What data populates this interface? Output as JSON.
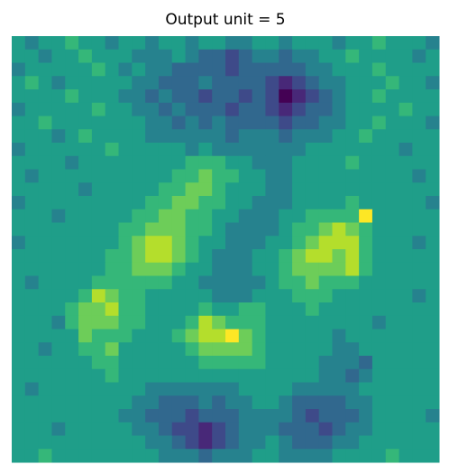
{
  "chart_data": {
    "type": "heatmap",
    "title": "Output unit = 5",
    "colormap": "viridis",
    "vlim": [
      0,
      9
    ],
    "values": [
      [
        5,
        4,
        5,
        5,
        6,
        5,
        5,
        4,
        5,
        5,
        4,
        5,
        5,
        4,
        5,
        5,
        4,
        4,
        5,
        5,
        4,
        5,
        5,
        5,
        4,
        5,
        5,
        6,
        5,
        5,
        5,
        4
      ],
      [
        5,
        5,
        4,
        5,
        5,
        6,
        5,
        5,
        5,
        4,
        4,
        4,
        5,
        4,
        3,
        3,
        2,
        3,
        4,
        4,
        3,
        4,
        4,
        5,
        5,
        6,
        5,
        5,
        5,
        5,
        4,
        5
      ],
      [
        4,
        5,
        5,
        5,
        5,
        5,
        6,
        5,
        4,
        5,
        4,
        4,
        3,
        3,
        3,
        3,
        2,
        3,
        3,
        3,
        3,
        3,
        4,
        4,
        5,
        5,
        5,
        6,
        5,
        5,
        5,
        5
      ],
      [
        5,
        6,
        5,
        4,
        5,
        5,
        5,
        5,
        5,
        4,
        4,
        3,
        3,
        3,
        4,
        3,
        3,
        3,
        3,
        2,
        1,
        2,
        3,
        4,
        4,
        5,
        5,
        5,
        6,
        5,
        5,
        4
      ],
      [
        5,
        5,
        5,
        5,
        6,
        5,
        5,
        5,
        4,
        4,
        3,
        4,
        3,
        3,
        2,
        3,
        3,
        2,
        3,
        2,
        0,
        1,
        2,
        3,
        4,
        5,
        5,
        6,
        5,
        5,
        5,
        5
      ],
      [
        4,
        5,
        5,
        5,
        5,
        5,
        6,
        5,
        5,
        4,
        4,
        3,
        4,
        3,
        3,
        3,
        2,
        3,
        3,
        2,
        1,
        2,
        3,
        3,
        4,
        5,
        5,
        5,
        5,
        6,
        5,
        5
      ],
      [
        5,
        5,
        6,
        5,
        5,
        5,
        5,
        5,
        5,
        5,
        4,
        4,
        3,
        4,
        3,
        4,
        3,
        3,
        3,
        3,
        2,
        3,
        3,
        4,
        4,
        5,
        5,
        6,
        5,
        5,
        5,
        4
      ],
      [
        5,
        5,
        5,
        4,
        5,
        6,
        5,
        5,
        5,
        5,
        4,
        4,
        4,
        4,
        4,
        4,
        3,
        4,
        4,
        4,
        3,
        4,
        4,
        4,
        5,
        5,
        6,
        5,
        5,
        5,
        5,
        5
      ],
      [
        4,
        5,
        5,
        5,
        5,
        5,
        5,
        6,
        5,
        5,
        5,
        5,
        5,
        4,
        5,
        4,
        4,
        4,
        4,
        4,
        4,
        4,
        5,
        5,
        5,
        5,
        5,
        5,
        5,
        4,
        5,
        5
      ],
      [
        5,
        5,
        5,
        5,
        4,
        5,
        5,
        5,
        5,
        5,
        5,
        5,
        5,
        6,
        6,
        6,
        5,
        5,
        4,
        4,
        4,
        5,
        5,
        5,
        5,
        6,
        5,
        5,
        5,
        5,
        5,
        5
      ],
      [
        5,
        4,
        5,
        5,
        5,
        5,
        5,
        5,
        5,
        5,
        5,
        5,
        6,
        6,
        7,
        6,
        6,
        5,
        5,
        4,
        4,
        5,
        5,
        5,
        5,
        5,
        5,
        5,
        5,
        5,
        4,
        5
      ],
      [
        5,
        5,
        5,
        5,
        5,
        4,
        5,
        5,
        5,
        5,
        5,
        6,
        6,
        7,
        7,
        6,
        5,
        5,
        5,
        4,
        4,
        5,
        5,
        5,
        5,
        5,
        5,
        5,
        5,
        5,
        5,
        5
      ],
      [
        4,
        5,
        5,
        5,
        5,
        5,
        5,
        5,
        5,
        5,
        6,
        6,
        7,
        7,
        6,
        6,
        5,
        5,
        4,
        4,
        4,
        5,
        5,
        5,
        5,
        6,
        5,
        5,
        5,
        5,
        5,
        4
      ],
      [
        5,
        5,
        5,
        4,
        5,
        5,
        5,
        5,
        5,
        6,
        6,
        7,
        7,
        6,
        6,
        5,
        5,
        4,
        4,
        4,
        5,
        5,
        6,
        6,
        6,
        6,
        9,
        5,
        5,
        5,
        5,
        5
      ],
      [
        5,
        5,
        5,
        5,
        5,
        5,
        5,
        5,
        6,
        6,
        7,
        7,
        7,
        6,
        6,
        5,
        4,
        4,
        4,
        4,
        5,
        6,
        6,
        7,
        8,
        7,
        6,
        5,
        5,
        5,
        5,
        5
      ],
      [
        4,
        5,
        5,
        5,
        5,
        5,
        5,
        5,
        6,
        7,
        8,
        8,
        7,
        6,
        5,
        5,
        4,
        4,
        4,
        5,
        5,
        6,
        7,
        8,
        8,
        8,
        6,
        5,
        5,
        5,
        4,
        5
      ],
      [
        5,
        5,
        5,
        5,
        5,
        5,
        5,
        6,
        6,
        7,
        8,
        8,
        7,
        6,
        5,
        4,
        4,
        4,
        5,
        5,
        6,
        7,
        8,
        8,
        7,
        8,
        6,
        5,
        5,
        5,
        5,
        5
      ],
      [
        5,
        5,
        5,
        5,
        5,
        5,
        5,
        6,
        6,
        7,
        7,
        7,
        6,
        5,
        5,
        4,
        4,
        4,
        5,
        5,
        6,
        7,
        7,
        7,
        7,
        8,
        6,
        5,
        5,
        5,
        5,
        5
      ],
      [
        5,
        4,
        5,
        5,
        5,
        5,
        6,
        6,
        6,
        6,
        6,
        6,
        5,
        5,
        4,
        4,
        4,
        4,
        4,
        5,
        6,
        6,
        7,
        6,
        6,
        6,
        5,
        5,
        5,
        5,
        5,
        5
      ],
      [
        5,
        5,
        5,
        5,
        5,
        6,
        8,
        7,
        6,
        6,
        5,
        5,
        5,
        5,
        5,
        4,
        4,
        4,
        5,
        5,
        5,
        6,
        6,
        6,
        5,
        5,
        5,
        5,
        5,
        5,
        4,
        5
      ],
      [
        5,
        5,
        5,
        5,
        6,
        7,
        7,
        8,
        6,
        6,
        5,
        5,
        5,
        5,
        6,
        5,
        5,
        6,
        6,
        5,
        5,
        5,
        6,
        5,
        5,
        5,
        5,
        5,
        5,
        5,
        5,
        5
      ],
      [
        5,
        5,
        5,
        4,
        6,
        7,
        7,
        7,
        6,
        6,
        5,
        5,
        5,
        6,
        8,
        7,
        6,
        6,
        6,
        5,
        5,
        5,
        5,
        5,
        5,
        5,
        5,
        4,
        5,
        5,
        5,
        5
      ],
      [
        5,
        5,
        5,
        5,
        5,
        7,
        6,
        6,
        6,
        5,
        5,
        5,
        6,
        7,
        8,
        8,
        9,
        7,
        6,
        5,
        5,
        5,
        5,
        5,
        4,
        5,
        5,
        5,
        5,
        5,
        5,
        5
      ],
      [
        5,
        5,
        4,
        5,
        5,
        6,
        6,
        7,
        5,
        5,
        5,
        5,
        5,
        6,
        7,
        7,
        7,
        7,
        6,
        5,
        5,
        5,
        5,
        5,
        4,
        4,
        5,
        5,
        5,
        5,
        5,
        5
      ],
      [
        5,
        5,
        5,
        5,
        5,
        5,
        6,
        6,
        5,
        5,
        5,
        5,
        5,
        5,
        6,
        6,
        6,
        6,
        6,
        5,
        5,
        5,
        5,
        4,
        4,
        4,
        3,
        5,
        5,
        5,
        5,
        5
      ],
      [
        5,
        5,
        5,
        5,
        5,
        5,
        5,
        6,
        5,
        5,
        5,
        5,
        5,
        5,
        5,
        5,
        5,
        5,
        5,
        5,
        5,
        5,
        5,
        4,
        4,
        3,
        4,
        5,
        5,
        5,
        5,
        5
      ],
      [
        5,
        4,
        5,
        5,
        5,
        5,
        5,
        5,
        5,
        5,
        4,
        4,
        4,
        4,
        4,
        4,
        4,
        5,
        5,
        5,
        5,
        4,
        4,
        4,
        4,
        4,
        5,
        5,
        5,
        5,
        5,
        5
      ],
      [
        5,
        5,
        5,
        5,
        5,
        5,
        5,
        5,
        5,
        4,
        4,
        3,
        3,
        3,
        4,
        3,
        4,
        4,
        5,
        5,
        4,
        3,
        3,
        3,
        3,
        4,
        4,
        5,
        5,
        5,
        5,
        5
      ],
      [
        5,
        5,
        5,
        5,
        5,
        5,
        5,
        5,
        4,
        4,
        3,
        3,
        3,
        2,
        3,
        3,
        3,
        4,
        4,
        4,
        4,
        3,
        2,
        3,
        3,
        3,
        4,
        5,
        5,
        5,
        5,
        4
      ],
      [
        5,
        5,
        5,
        4,
        5,
        5,
        5,
        5,
        5,
        4,
        4,
        3,
        2,
        2,
        1,
        2,
        3,
        4,
        4,
        4,
        3,
        3,
        3,
        2,
        3,
        4,
        4,
        5,
        5,
        5,
        5,
        5
      ],
      [
        5,
        5,
        5,
        5,
        5,
        5,
        5,
        5,
        5,
        5,
        4,
        4,
        3,
        2,
        1,
        2,
        3,
        4,
        4,
        5,
        4,
        3,
        3,
        3,
        4,
        4,
        5,
        5,
        5,
        5,
        5,
        5
      ],
      [
        5,
        5,
        6,
        5,
        5,
        5,
        5,
        5,
        5,
        5,
        5,
        4,
        4,
        4,
        3,
        4,
        4,
        4,
        5,
        5,
        4,
        4,
        4,
        4,
        5,
        5,
        5,
        5,
        6,
        5,
        5,
        5
      ]
    ]
  }
}
